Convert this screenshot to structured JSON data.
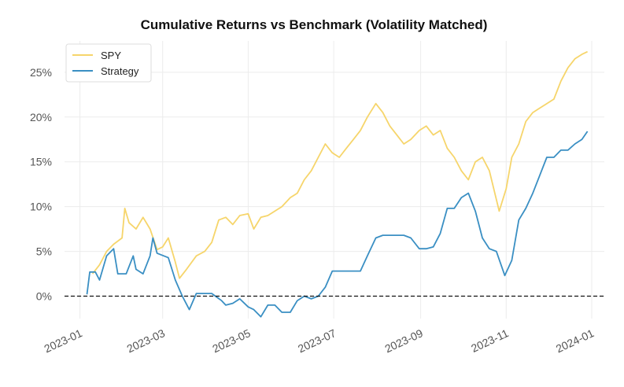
{
  "chart_data": {
    "type": "line",
    "title": "Cumulative Returns vs Benchmark (Volatility Matched)",
    "xlabel": "",
    "ylabel": "",
    "x_ticks": [
      "2023-01",
      "2023-03",
      "2023-05",
      "2023-07",
      "2023-09",
      "2023-11",
      "2024-01"
    ],
    "y_ticks": [
      "0%",
      "5%",
      "10%",
      "15%",
      "20%",
      "25%"
    ],
    "xlim": [
      "2022-12-21",
      "2024-01-10"
    ],
    "ylim": [
      -2.5,
      28.5
    ],
    "grid": true,
    "legend": "top-left",
    "baseline": 0,
    "colors": {
      "SPY": "#f6d56b",
      "Strategy": "#3a8fc3",
      "baseline": "#111111",
      "grid": "#ececec"
    },
    "series": [
      {
        "name": "SPY",
        "points": [
          [
            "2023-01-10",
            2.5
          ],
          [
            "2023-01-15",
            3.5
          ],
          [
            "2023-01-20",
            5.0
          ],
          [
            "2023-01-25",
            5.8
          ],
          [
            "2023-01-31",
            6.5
          ],
          [
            "2023-02-02",
            9.8
          ],
          [
            "2023-02-05",
            8.2
          ],
          [
            "2023-02-10",
            7.5
          ],
          [
            "2023-02-15",
            8.8
          ],
          [
            "2023-02-20",
            7.5
          ],
          [
            "2023-02-25",
            5.2
          ],
          [
            "2023-03-01",
            5.5
          ],
          [
            "2023-03-05",
            6.5
          ],
          [
            "2023-03-10",
            3.8
          ],
          [
            "2023-03-13",
            2.0
          ],
          [
            "2023-03-18",
            3.0
          ],
          [
            "2023-03-25",
            4.5
          ],
          [
            "2023-03-31",
            5.0
          ],
          [
            "2023-04-05",
            6.0
          ],
          [
            "2023-04-10",
            8.5
          ],
          [
            "2023-04-15",
            8.8
          ],
          [
            "2023-04-20",
            8.0
          ],
          [
            "2023-04-25",
            9.0
          ],
          [
            "2023-05-01",
            9.2
          ],
          [
            "2023-05-05",
            7.5
          ],
          [
            "2023-05-10",
            8.8
          ],
          [
            "2023-05-15",
            9.0
          ],
          [
            "2023-05-20",
            9.5
          ],
          [
            "2023-05-25",
            10.0
          ],
          [
            "2023-05-31",
            11.0
          ],
          [
            "2023-06-05",
            11.5
          ],
          [
            "2023-06-10",
            13.0
          ],
          [
            "2023-06-15",
            14.0
          ],
          [
            "2023-06-20",
            15.5
          ],
          [
            "2023-06-25",
            17.0
          ],
          [
            "2023-06-30",
            16.0
          ],
          [
            "2023-07-05",
            15.5
          ],
          [
            "2023-07-10",
            16.5
          ],
          [
            "2023-07-15",
            17.5
          ],
          [
            "2023-07-20",
            18.5
          ],
          [
            "2023-07-25",
            20.0
          ],
          [
            "2023-07-31",
            21.5
          ],
          [
            "2023-08-05",
            20.5
          ],
          [
            "2023-08-10",
            19.0
          ],
          [
            "2023-08-15",
            18.0
          ],
          [
            "2023-08-20",
            17.0
          ],
          [
            "2023-08-25",
            17.5
          ],
          [
            "2023-08-31",
            18.5
          ],
          [
            "2023-09-05",
            19.0
          ],
          [
            "2023-09-10",
            18.0
          ],
          [
            "2023-09-15",
            18.5
          ],
          [
            "2023-09-20",
            16.5
          ],
          [
            "2023-09-25",
            15.5
          ],
          [
            "2023-09-30",
            14.0
          ],
          [
            "2023-10-05",
            13.0
          ],
          [
            "2023-10-10",
            15.0
          ],
          [
            "2023-10-15",
            15.5
          ],
          [
            "2023-10-20",
            14.0
          ],
          [
            "2023-10-27",
            9.5
          ],
          [
            "2023-11-01",
            12.0
          ],
          [
            "2023-11-05",
            15.5
          ],
          [
            "2023-11-10",
            17.0
          ],
          [
            "2023-11-15",
            19.5
          ],
          [
            "2023-11-20",
            20.5
          ],
          [
            "2023-11-25",
            21.0
          ],
          [
            "2023-11-30",
            21.5
          ],
          [
            "2023-12-05",
            22.0
          ],
          [
            "2023-12-10",
            24.0
          ],
          [
            "2023-12-15",
            25.5
          ],
          [
            "2023-12-20",
            26.5
          ],
          [
            "2023-12-25",
            27.0
          ],
          [
            "2023-12-29",
            27.3
          ]
        ]
      },
      {
        "name": "Strategy",
        "points": [
          [
            "2023-01-06",
            0.2
          ],
          [
            "2023-01-08",
            2.7
          ],
          [
            "2023-01-12",
            2.7
          ],
          [
            "2023-01-15",
            1.8
          ],
          [
            "2023-01-20",
            4.5
          ],
          [
            "2023-01-25",
            5.3
          ],
          [
            "2023-01-28",
            2.5
          ],
          [
            "2023-02-03",
            2.5
          ],
          [
            "2023-02-08",
            4.5
          ],
          [
            "2023-02-10",
            3.0
          ],
          [
            "2023-02-15",
            2.5
          ],
          [
            "2023-02-20",
            4.5
          ],
          [
            "2023-02-22",
            6.5
          ],
          [
            "2023-02-25",
            4.8
          ],
          [
            "2023-03-05",
            4.3
          ],
          [
            "2023-03-10",
            1.8
          ],
          [
            "2023-03-15",
            0.0
          ],
          [
            "2023-03-20",
            -1.5
          ],
          [
            "2023-03-25",
            0.3
          ],
          [
            "2023-03-31",
            0.3
          ],
          [
            "2023-04-05",
            0.3
          ],
          [
            "2023-04-12",
            -0.5
          ],
          [
            "2023-04-15",
            -1.0
          ],
          [
            "2023-04-20",
            -0.8
          ],
          [
            "2023-04-25",
            -0.3
          ],
          [
            "2023-05-01",
            -1.2
          ],
          [
            "2023-05-05",
            -1.5
          ],
          [
            "2023-05-10",
            -2.3
          ],
          [
            "2023-05-15",
            -1.0
          ],
          [
            "2023-05-20",
            -1.0
          ],
          [
            "2023-05-25",
            -1.8
          ],
          [
            "2023-05-31",
            -1.8
          ],
          [
            "2023-06-05",
            -0.5
          ],
          [
            "2023-06-10",
            0.0
          ],
          [
            "2023-06-15",
            -0.3
          ],
          [
            "2023-06-20",
            0.0
          ],
          [
            "2023-06-25",
            1.0
          ],
          [
            "2023-06-30",
            2.8
          ],
          [
            "2023-07-05",
            2.8
          ],
          [
            "2023-07-10",
            2.8
          ],
          [
            "2023-07-15",
            2.8
          ],
          [
            "2023-07-20",
            2.8
          ],
          [
            "2023-07-25",
            4.5
          ],
          [
            "2023-07-31",
            6.5
          ],
          [
            "2023-08-05",
            6.8
          ],
          [
            "2023-08-10",
            6.8
          ],
          [
            "2023-08-15",
            6.8
          ],
          [
            "2023-08-20",
            6.8
          ],
          [
            "2023-08-25",
            6.5
          ],
          [
            "2023-08-31",
            5.3
          ],
          [
            "2023-09-05",
            5.3
          ],
          [
            "2023-09-10",
            5.5
          ],
          [
            "2023-09-15",
            7.0
          ],
          [
            "2023-09-20",
            9.8
          ],
          [
            "2023-09-25",
            9.8
          ],
          [
            "2023-09-30",
            11.0
          ],
          [
            "2023-10-05",
            11.5
          ],
          [
            "2023-10-10",
            9.5
          ],
          [
            "2023-10-15",
            6.5
          ],
          [
            "2023-10-20",
            5.3
          ],
          [
            "2023-10-25",
            5.0
          ],
          [
            "2023-10-31",
            2.3
          ],
          [
            "2023-11-05",
            4.0
          ],
          [
            "2023-11-10",
            8.5
          ],
          [
            "2023-11-15",
            9.8
          ],
          [
            "2023-11-20",
            11.5
          ],
          [
            "2023-11-25",
            13.5
          ],
          [
            "2023-11-30",
            15.5
          ],
          [
            "2023-12-05",
            15.5
          ],
          [
            "2023-12-10",
            16.3
          ],
          [
            "2023-12-15",
            16.3
          ],
          [
            "2023-12-20",
            17.0
          ],
          [
            "2023-12-25",
            17.5
          ],
          [
            "2023-12-29",
            18.4
          ]
        ]
      }
    ]
  }
}
